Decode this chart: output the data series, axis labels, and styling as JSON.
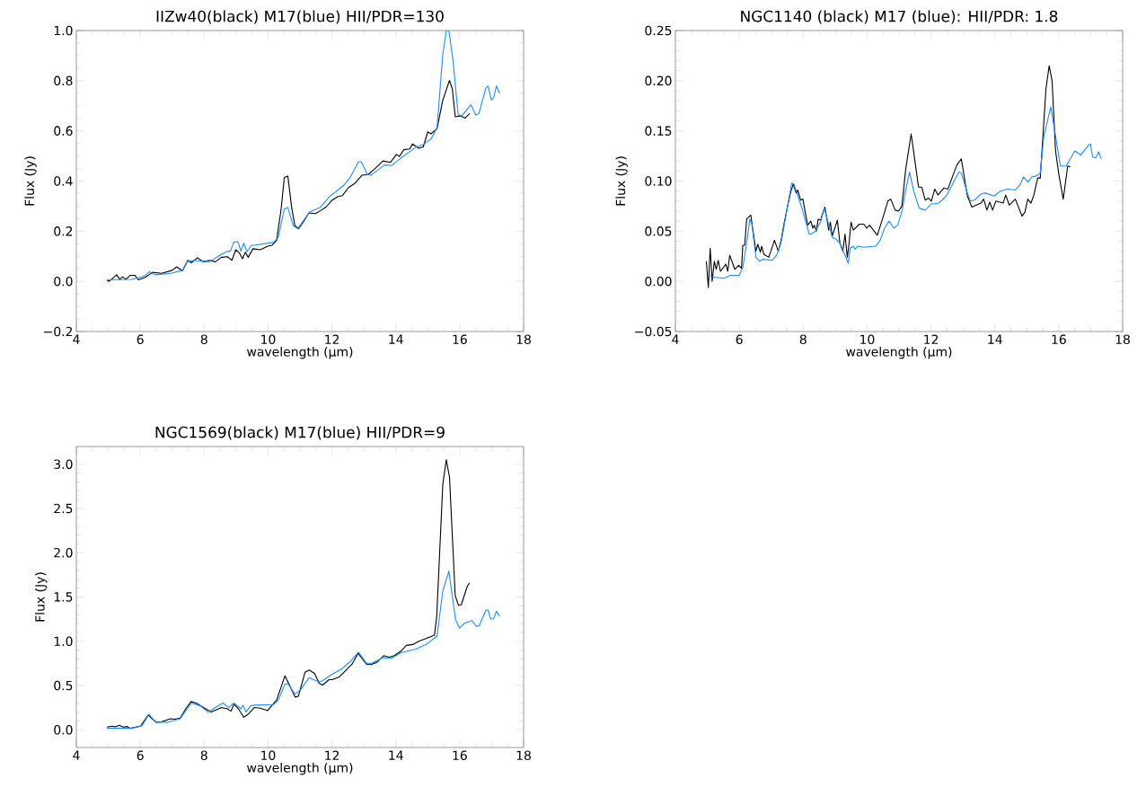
{
  "chart_data": [
    {
      "type": "line",
      "title": "IIZw40(black) M17(blue) HII/PDR=130",
      "xlabel": "wavelength (μm)",
      "ylabel": "Flux (Jy)",
      "xlim": [
        4,
        18
      ],
      "ylim": [
        -0.2,
        1.0
      ],
      "xticks": [
        4,
        6,
        8,
        10,
        12,
        14,
        16,
        18
      ],
      "yticks": [
        {
          "value": -0.2,
          "label": "−0.2"
        },
        {
          "value": 0,
          "label": "0.0"
        },
        {
          "value": 0.2,
          "label": "0.2"
        },
        {
          "value": 0.4,
          "label": "0.4"
        },
        {
          "value": 0.6,
          "label": "0.6"
        },
        {
          "value": 0.8,
          "label": "0.8"
        },
        {
          "value": 1.0,
          "label": "1.0"
        }
      ],
      "series": [
        {
          "color": "#000000",
          "x": [
            4.96,
            5.03,
            5.26,
            5.36,
            5.45,
            5.55,
            5.69,
            5.83,
            5.94,
            6.15,
            6.39,
            6.67,
            7.0,
            7.14,
            7.32,
            7.49,
            7.6,
            7.79,
            7.98,
            8.17,
            8.35,
            8.54,
            8.73,
            8.87,
            8.99,
            9.1,
            9.2,
            9.29,
            9.38,
            9.53,
            9.76,
            9.99,
            10.13,
            10.27,
            10.41,
            10.51,
            10.62,
            10.74,
            10.84,
            10.96,
            11.12,
            11.28,
            11.49,
            11.68,
            11.82,
            12.01,
            12.19,
            12.33,
            12.52,
            12.71,
            12.94,
            13.13,
            13.32,
            13.6,
            13.83,
            14.02,
            14.11,
            14.25,
            14.44,
            14.52,
            14.72,
            14.86,
            15.0,
            15.1,
            15.29,
            15.47,
            15.68,
            15.77,
            15.86,
            16.03,
            16.17,
            16.31
          ],
          "values": [
            0.004,
            0,
            0.026,
            0.008,
            0.018,
            0.008,
            0.024,
            0.024,
            0.006,
            0.016,
            0.036,
            0.032,
            0.044,
            0.058,
            0.042,
            0.084,
            0.074,
            0.094,
            0.078,
            0.084,
            0.078,
            0.096,
            0.098,
            0.084,
            0.126,
            0.114,
            0.09,
            0.116,
            0.096,
            0.13,
            0.126,
            0.14,
            0.144,
            0.164,
            0.288,
            0.414,
            0.42,
            0.294,
            0.222,
            0.21,
            0.24,
            0.273,
            0.27,
            0.285,
            0.297,
            0.324,
            0.338,
            0.342,
            0.374,
            0.39,
            0.423,
            0.426,
            0.446,
            0.48,
            0.474,
            0.506,
            0.498,
            0.525,
            0.528,
            0.548,
            0.531,
            0.536,
            0.596,
            0.588,
            0.609,
            0.722,
            0.801,
            0.767,
            0.656,
            0.66,
            0.651,
            0.669
          ]
        },
        {
          "color": "#1e8cff",
          "x": [
            4.96,
            5.73,
            6.11,
            6.28,
            6.48,
            6.95,
            7.32,
            7.46,
            7.7,
            8.17,
            8.54,
            8.73,
            8.82,
            8.93,
            9.06,
            9.15,
            9.24,
            9.34,
            9.48,
            9.57,
            10.18,
            10.32,
            10.51,
            10.62,
            10.79,
            10.93,
            11.3,
            11.63,
            11.91,
            12.38,
            12.57,
            12.83,
            12.92,
            13.11,
            13.22,
            13.64,
            13.87,
            14.16,
            14.62,
            14.86,
            15.1,
            15.29,
            15.47,
            15.58,
            15.66,
            15.79,
            15.95,
            16.07,
            16.35,
            16.5,
            16.6,
            16.82,
            16.89,
            16.99,
            17.06,
            17.15,
            17.25
          ],
          "values": [
            0.006,
            0.008,
            0.02,
            0.038,
            0.026,
            0.032,
            0.044,
            0.078,
            0.084,
            0.078,
            0.108,
            0.12,
            0.12,
            0.156,
            0.158,
            0.12,
            0.152,
            0.118,
            0.144,
            0.144,
            0.156,
            0.176,
            0.288,
            0.294,
            0.222,
            0.21,
            0.276,
            0.294,
            0.336,
            0.384,
            0.414,
            0.477,
            0.477,
            0.426,
            0.423,
            0.464,
            0.462,
            0.492,
            0.534,
            0.546,
            0.567,
            0.612,
            0.905,
            1.0,
            1.0,
            0.881,
            0.665,
            0.66,
            0.704,
            0.663,
            0.669,
            0.771,
            0.779,
            0.723,
            0.731,
            0.779,
            0.749
          ]
        }
      ]
    },
    {
      "type": "line",
      "title": "NGC1140 (black) M17 (blue): HII/PDR: 1.8",
      "xlabel": "wavelength (μm)",
      "ylabel": "Flux (Jy)",
      "xlim": [
        4,
        18
      ],
      "ylim": [
        -0.05,
        0.25
      ],
      "xticks": [
        4,
        6,
        8,
        10,
        12,
        14,
        16,
        18
      ],
      "yticks": [
        {
          "value": -0.05,
          "label": "−0.05"
        },
        {
          "value": 0,
          "label": "0.00"
        },
        {
          "value": 0.05,
          "label": "0.05"
        },
        {
          "value": 0.1,
          "label": "0.10"
        },
        {
          "value": 0.15,
          "label": "0.15"
        },
        {
          "value": 0.2,
          "label": "0.20"
        },
        {
          "value": 0.25,
          "label": "0.25"
        }
      ],
      "series": [
        {
          "color": "#000000",
          "x": [
            4.97,
            5.03,
            5.09,
            5.15,
            5.22,
            5.28,
            5.34,
            5.41,
            5.58,
            5.64,
            5.7,
            5.86,
            5.98,
            6.07,
            6.11,
            6.17,
            6.23,
            6.36,
            6.52,
            6.58,
            6.66,
            6.7,
            6.77,
            6.92,
            6.99,
            7.1,
            7.22,
            7.31,
            7.41,
            7.5,
            7.6,
            7.69,
            7.78,
            7.83,
            7.92,
            7.99,
            8.07,
            8.14,
            8.24,
            8.3,
            8.35,
            8.41,
            8.47,
            8.55,
            8.58,
            8.68,
            8.8,
            8.85,
            8.91,
            9.0,
            9.07,
            9.15,
            9.24,
            9.31,
            9.38,
            9.43,
            9.5,
            9.57,
            9.76,
            9.9,
            9.99,
            10.08,
            10.32,
            10.51,
            10.65,
            10.74,
            10.88,
            10.98,
            11.09,
            11.21,
            11.38,
            11.61,
            11.71,
            11.82,
            11.92,
            12.01,
            12.12,
            12.22,
            12.4,
            12.53,
            12.81,
            12.95,
            13.14,
            13.28,
            13.56,
            13.65,
            13.75,
            13.84,
            13.93,
            14.03,
            14.26,
            14.34,
            14.45,
            14.64,
            14.85,
            14.94,
            15.03,
            15.13,
            15.22,
            15.34,
            15.42,
            15.6,
            15.7,
            15.79,
            15.9,
            16.0,
            16.14,
            16.28,
            16.36
          ],
          "values": [
            0.02,
            -0.006,
            0.033,
            0.0,
            0.02,
            0.012,
            0.021,
            0.01,
            0.017,
            0.01,
            0.026,
            0.012,
            0.016,
            0.013,
            0.036,
            0.036,
            0.062,
            0.066,
            0.03,
            0.037,
            0.029,
            0.035,
            0.027,
            0.024,
            0.03,
            0.041,
            0.03,
            0.041,
            0.059,
            0.073,
            0.088,
            0.097,
            0.088,
            0.091,
            0.081,
            0.082,
            0.068,
            0.056,
            0.06,
            0.053,
            0.056,
            0.05,
            0.062,
            0.061,
            0.065,
            0.074,
            0.051,
            0.059,
            0.045,
            0.054,
            0.061,
            0.038,
            0.03,
            0.047,
            0.024,
            0.036,
            0.059,
            0.051,
            0.057,
            0.057,
            0.053,
            0.056,
            0.046,
            0.065,
            0.08,
            0.082,
            0.071,
            0.07,
            0.075,
            0.112,
            0.147,
            0.094,
            0.094,
            0.081,
            0.083,
            0.08,
            0.092,
            0.086,
            0.093,
            0.092,
            0.116,
            0.122,
            0.085,
            0.074,
            0.078,
            0.082,
            0.071,
            0.079,
            0.071,
            0.08,
            0.078,
            0.086,
            0.076,
            0.082,
            0.065,
            0.069,
            0.082,
            0.078,
            0.086,
            0.103,
            0.103,
            0.192,
            0.215,
            0.2,
            0.13,
            0.107,
            0.082,
            0.115,
            0.114
          ]
        },
        {
          "color": "#1e8cff",
          "x": [
            5.01,
            5.25,
            5.53,
            5.72,
            6.0,
            6.11,
            6.23,
            6.33,
            6.4,
            6.52,
            6.64,
            6.75,
            7.03,
            7.17,
            7.31,
            7.5,
            7.64,
            7.71,
            7.88,
            7.97,
            8.11,
            8.19,
            8.3,
            8.39,
            8.55,
            8.66,
            8.77,
            8.91,
            9.03,
            9.15,
            9.27,
            9.41,
            9.47,
            9.57,
            9.62,
            9.71,
            9.9,
            10.27,
            10.41,
            10.55,
            10.69,
            10.84,
            10.96,
            11.1,
            11.21,
            11.33,
            11.46,
            11.63,
            11.82,
            12.01,
            12.24,
            12.48,
            12.71,
            12.87,
            12.95,
            13.14,
            13.23,
            13.37,
            13.56,
            13.7,
            13.98,
            14.17,
            14.4,
            14.64,
            14.78,
            14.9,
            15.04,
            15.15,
            15.3,
            15.42,
            15.53,
            15.75,
            15.9,
            16.05,
            16.23,
            16.38,
            16.5,
            16.69,
            16.94,
            16.99,
            17.06,
            17.16,
            17.25,
            17.33
          ],
          "values": [
            0.006,
            0.004,
            0.003,
            0.006,
            0.006,
            0.014,
            0.038,
            0.062,
            0.056,
            0.024,
            0.02,
            0.022,
            0.021,
            0.026,
            0.039,
            0.073,
            0.098,
            0.097,
            0.081,
            0.072,
            0.056,
            0.047,
            0.048,
            0.05,
            0.06,
            0.073,
            0.06,
            0.044,
            0.042,
            0.038,
            0.029,
            0.018,
            0.033,
            0.035,
            0.032,
            0.035,
            0.034,
            0.035,
            0.041,
            0.053,
            0.06,
            0.053,
            0.056,
            0.071,
            0.091,
            0.109,
            0.09,
            0.073,
            0.071,
            0.077,
            0.078,
            0.085,
            0.099,
            0.109,
            0.108,
            0.088,
            0.08,
            0.081,
            0.087,
            0.088,
            0.085,
            0.09,
            0.092,
            0.091,
            0.096,
            0.104,
            0.099,
            0.104,
            0.105,
            0.108,
            0.144,
            0.174,
            0.145,
            0.115,
            0.115,
            0.123,
            0.13,
            0.126,
            0.136,
            0.137,
            0.124,
            0.123,
            0.129,
            0.122
          ]
        }
      ]
    },
    {
      "type": "line",
      "title": "NGC1569(black) M17(blue) HII/PDR=9",
      "xlabel": "wavelength (μm)",
      "ylabel": "Flux (Jy)",
      "xlim": [
        4,
        18
      ],
      "ylim": [
        -0.2,
        3.2
      ],
      "xticks": [
        4,
        6,
        8,
        10,
        12,
        14,
        16,
        18
      ],
      "yticks": [
        {
          "value": 0,
          "label": "0.0"
        },
        {
          "value": 0.5,
          "label": "0.5"
        },
        {
          "value": 1.0,
          "label": "1.0"
        },
        {
          "value": 1.5,
          "label": "1.5"
        },
        {
          "value": 2.0,
          "label": "2.0"
        },
        {
          "value": 2.5,
          "label": "2.5"
        },
        {
          "value": 3.0,
          "label": "3.0"
        }
      ],
      "series": [
        {
          "color": "#000000",
          "x": [
            4.96,
            5.12,
            5.22,
            5.34,
            5.47,
            5.59,
            5.69,
            6.01,
            6.25,
            6.37,
            6.51,
            6.67,
            6.95,
            7.09,
            7.25,
            7.42,
            7.59,
            7.75,
            7.98,
            8.22,
            8.45,
            8.54,
            8.73,
            8.84,
            8.93,
            9.06,
            9.24,
            9.38,
            9.57,
            9.76,
            9.99,
            10.27,
            10.53,
            10.85,
            10.95,
            11.16,
            11.29,
            11.46,
            11.6,
            11.71,
            11.91,
            12.01,
            12.24,
            12.43,
            12.63,
            12.82,
            13.08,
            13.22,
            13.41,
            13.62,
            13.79,
            13.95,
            14.16,
            14.33,
            14.53,
            14.72,
            14.96,
            15.21,
            15.28,
            15.47,
            15.58,
            15.68,
            15.86,
            15.96,
            16.05,
            16.24,
            16.31
          ],
          "values": [
            0.031,
            0.041,
            0.034,
            0.051,
            0.031,
            0.037,
            0.017,
            0.041,
            0.166,
            0.125,
            0.085,
            0.092,
            0.125,
            0.119,
            0.132,
            0.234,
            0.319,
            0.302,
            0.251,
            0.2,
            0.237,
            0.251,
            0.237,
            0.21,
            0.288,
            0.244,
            0.142,
            0.176,
            0.251,
            0.244,
            0.217,
            0.336,
            0.61,
            0.369,
            0.38,
            0.651,
            0.675,
            0.634,
            0.525,
            0.505,
            0.566,
            0.566,
            0.6,
            0.668,
            0.742,
            0.864,
            0.742,
            0.736,
            0.763,
            0.837,
            0.82,
            0.837,
            0.888,
            0.953,
            0.963,
            1.0,
            1.034,
            1.068,
            1.278,
            2.769,
            3.051,
            2.854,
            1.515,
            1.407,
            1.414,
            1.624,
            1.658
          ]
        },
        {
          "color": "#1e8cff",
          "x": [
            4.96,
            5.73,
            6.06,
            6.27,
            6.48,
            6.85,
            7.25,
            7.6,
            7.89,
            8.12,
            8.35,
            8.59,
            8.77,
            8.93,
            9.06,
            9.15,
            9.22,
            9.31,
            9.45,
            9.57,
            10.18,
            10.32,
            10.53,
            10.62,
            10.84,
            11.02,
            11.29,
            11.54,
            11.68,
            11.96,
            12.29,
            12.57,
            12.83,
            13.08,
            13.22,
            13.6,
            13.88,
            14.16,
            14.63,
            14.96,
            15.29,
            15.47,
            15.66,
            15.87,
            15.99,
            16.15,
            16.39,
            16.52,
            16.61,
            16.82,
            16.89,
            16.97,
            17.06,
            17.15,
            17.25
          ],
          "values": [
            0.017,
            0.017,
            0.047,
            0.176,
            0.085,
            0.085,
            0.125,
            0.302,
            0.268,
            0.2,
            0.251,
            0.302,
            0.251,
            0.302,
            0.268,
            0.234,
            0.278,
            0.2,
            0.268,
            0.278,
            0.285,
            0.336,
            0.515,
            0.522,
            0.403,
            0.454,
            0.59,
            0.549,
            0.549,
            0.617,
            0.685,
            0.769,
            0.878,
            0.753,
            0.749,
            0.814,
            0.81,
            0.871,
            0.912,
            0.966,
            1.058,
            1.566,
            1.793,
            1.244,
            1.149,
            1.203,
            1.234,
            1.169,
            1.176,
            1.353,
            1.353,
            1.251,
            1.254,
            1.339,
            1.285
          ]
        }
      ]
    }
  ]
}
